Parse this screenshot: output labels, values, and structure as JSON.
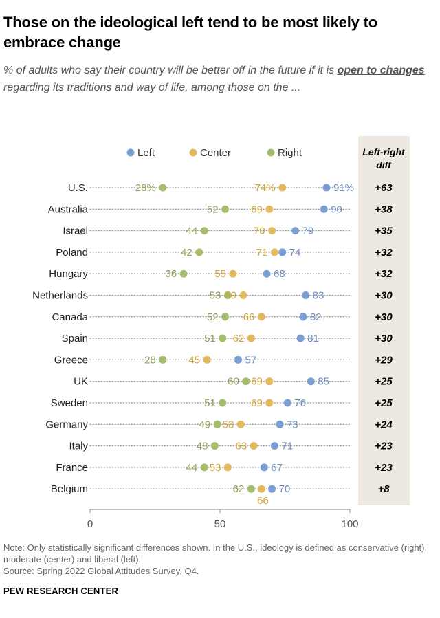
{
  "title": "Those on the ideological left tend to be most likely to embrace change",
  "subtitle": {
    "before": "% of adults who say their country will be better off in the future if it is ",
    "emphasis": "open to changes",
    "after": " regarding its traditions and way of life, among those on the ..."
  },
  "chart_data": {
    "type": "scatter",
    "legend_placement": "top",
    "series": [
      {
        "name": "Left",
        "color": "#7a9fd4"
      },
      {
        "name": "Center",
        "color": "#e3b95e"
      },
      {
        "name": "Right",
        "color": "#a6bd6e"
      }
    ],
    "text_colors": {
      "Left": "#6f8fbf",
      "Center": "#cfa33a",
      "Right": "#8ea25a"
    },
    "xlim": [
      0,
      100
    ],
    "xticks": [
      "0",
      "50",
      "100"
    ],
    "diff_header": "Left-right diff",
    "rows": [
      {
        "country": "U.S.",
        "left": 91,
        "center": 74,
        "right": 28,
        "diff": "+63",
        "left_label": "91%",
        "center_label": "74%",
        "right_label": "28%"
      },
      {
        "country": "Australia",
        "left": 90,
        "center": 69,
        "right": 52,
        "diff": "+38",
        "left_label": "90",
        "center_label": "69",
        "right_label": "52"
      },
      {
        "country": "Israel",
        "left": 79,
        "center": 70,
        "right": 44,
        "diff": "+35",
        "left_label": "79",
        "center_label": "70",
        "right_label": "44"
      },
      {
        "country": "Poland",
        "left": 74,
        "center": 71,
        "right": 42,
        "diff": "+32",
        "left_label": "74",
        "center_label": "71",
        "right_label": "42"
      },
      {
        "country": "Hungary",
        "left": 68,
        "center": 55,
        "right": 36,
        "diff": "+32",
        "left_label": "68",
        "center_label": "55",
        "right_label": "36"
      },
      {
        "country": "Netherlands",
        "left": 83,
        "center": 59,
        "right": 53,
        "diff": "+30",
        "left_label": "83",
        "center_label": "59",
        "right_label": "53"
      },
      {
        "country": "Canada",
        "left": 82,
        "center": 66,
        "right": 52,
        "diff": "+30",
        "left_label": "82",
        "center_label": "66",
        "right_label": "52"
      },
      {
        "country": "Spain",
        "left": 81,
        "center": 62,
        "right": 51,
        "diff": "+30",
        "left_label": "81",
        "center_label": "62",
        "right_label": "51"
      },
      {
        "country": "Greece",
        "left": 57,
        "center": 45,
        "right": 28,
        "diff": "+29",
        "left_label": "57",
        "center_label": "45",
        "right_label": "28"
      },
      {
        "country": "UK",
        "left": 85,
        "center": 69,
        "right": 60,
        "diff": "+25",
        "left_label": "85",
        "center_label": "69",
        "right_label": "60"
      },
      {
        "country": "Sweden",
        "left": 76,
        "center": 69,
        "right": 51,
        "diff": "+25",
        "left_label": "76",
        "center_label": "69",
        "right_label": "51"
      },
      {
        "country": "Germany",
        "left": 73,
        "center": 58,
        "right": 49,
        "diff": "+24",
        "left_label": "73",
        "center_label": "58",
        "right_label": "49"
      },
      {
        "country": "Italy",
        "left": 71,
        "center": 63,
        "right": 48,
        "diff": "+23",
        "left_label": "71",
        "center_label": "63",
        "right_label": "48"
      },
      {
        "country": "France",
        "left": 67,
        "center": 53,
        "right": 44,
        "diff": "+23",
        "left_label": "67",
        "center_label": "53",
        "right_label": "44"
      },
      {
        "country": "Belgium",
        "left": 70,
        "center": 66,
        "right": 62,
        "diff": "+8",
        "left_label": "70",
        "center_label": "66",
        "right_label": "62"
      }
    ]
  },
  "note": "Note: Only statistically significant differences shown. In the U.S., ideology is defined as conservative (right), moderate (center) and liberal (left).",
  "source": "Source: Spring 2022 Global Attitudes Survey. Q4.",
  "brand": "PEW RESEARCH CENTER"
}
